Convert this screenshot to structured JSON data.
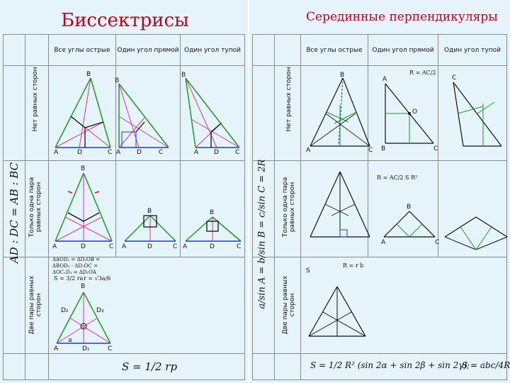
{
  "left": {
    "title": "Биссектрисы",
    "columns": [
      "Все углы острые",
      "Один угол прямой",
      "Один угол тупой"
    ],
    "rows": [
      "Нет равных сторон",
      "Только одна пара равных сторон",
      "Две пары равных сторон"
    ],
    "side_formula": "AD : DC = AB : BC",
    "notes": {
      "congruence": "ΔAOD₁ = ΔD₁OB = ΔBOD₃ - ΔD₂OC = ΔOC₁D₃ = ΔD₁OA",
      "area_small": "S = 3/2 ra",
      "r_small": "r = √3a/6",
      "area": "S = 1/2 rp"
    },
    "labels": {
      "A": "A",
      "B": "B",
      "C": "C",
      "D": "D",
      "D1": "D₁",
      "D2": "D₂",
      "D3": "D₃",
      "a": "a"
    }
  },
  "right": {
    "title": "Серединные перпендикуляры",
    "columns": [
      "Все углы острые",
      "Один угол прямой",
      "Один угол тупой"
    ],
    "rows": [
      "Нет равных сторон",
      "Только одна пара равных сторон",
      "Две пары равных сторон"
    ],
    "sine_law": "a/sin A = b/sin B = c/sin C = 2R",
    "r_half": "R = AC/2",
    "r_area": "R = AC/2   S   R²",
    "equilateral": "R = r   b",
    "area_formula": "S = 1/2 R² (sin 2α + sin 2β + sin 2γ);",
    "abc_formula": "S = abc/4R",
    "labels": {
      "A": "A",
      "B": "B",
      "C": "C",
      "O": "O",
      "S": "S"
    }
  },
  "colors": {
    "title": "#c0001a",
    "green": "#1d9b1d",
    "red": "#d0103a",
    "pink": "#e0309a",
    "blue": "#1a3ad0",
    "black": "#111111",
    "bg": "#e5f3fa"
  }
}
